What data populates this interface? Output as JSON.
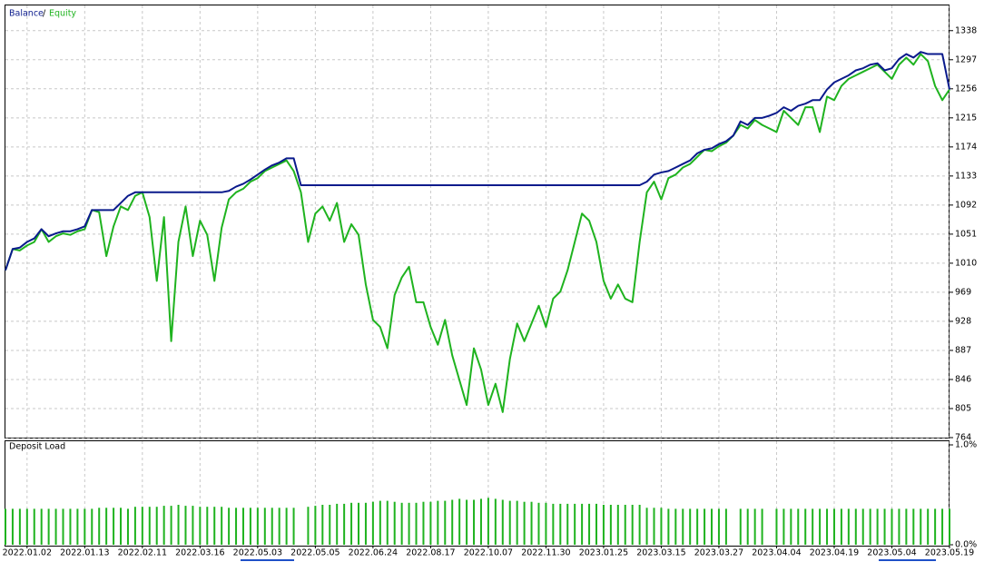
{
  "chart_data": [
    {
      "type": "line",
      "legend_separator": "/",
      "categories": [
        null,
        null,
        null,
        "2022.01.02",
        null,
        null,
        null,
        null,
        null,
        null,
        null,
        "2022.01.13",
        null,
        null,
        null,
        null,
        null,
        null,
        null,
        "2022.02.11",
        null,
        null,
        null,
        null,
        null,
        null,
        null,
        "2022.03.16",
        null,
        null,
        null,
        null,
        null,
        null,
        null,
        "2022.05.03",
        null,
        null,
        null,
        null,
        null,
        null,
        null,
        "2022.05.05",
        null,
        null,
        null,
        null,
        null,
        null,
        null,
        "2022.06.24",
        null,
        null,
        null,
        null,
        null,
        null,
        null,
        "2022.08.17",
        null,
        null,
        null,
        null,
        null,
        null,
        null,
        "2022.10.07",
        null,
        null,
        null,
        null,
        null,
        null,
        null,
        "2022.11.30",
        null,
        null,
        null,
        null,
        null,
        null,
        null,
        "2023.01.25",
        null,
        null,
        null,
        null,
        null,
        null,
        null,
        "2023.03.15",
        null,
        null,
        null,
        null,
        null,
        null,
        null,
        "2023.03.27",
        null,
        null,
        null,
        null,
        null,
        null,
        null,
        "2023.04.04",
        null,
        null,
        null,
        null,
        null,
        null,
        null,
        "2023.04.19",
        null,
        null,
        null,
        null,
        null,
        null,
        null,
        "2023.05.04",
        null,
        null,
        null,
        null,
        null,
        null,
        null,
        "2023.05.19"
      ],
      "series": [
        {
          "name": "Balance",
          "color": "#0a1a8c",
          "values": [
            1000,
            1030,
            1032,
            1040,
            1045,
            1058,
            1048,
            1052,
            1055,
            1055,
            1058,
            1062,
            1085,
            1085,
            1085,
            1085,
            1095,
            1105,
            1110,
            1110,
            1110,
            1110,
            1110,
            1110,
            1110,
            1110,
            1110,
            1110,
            1110,
            1110,
            1110,
            1112,
            1118,
            1122,
            1128,
            1135,
            1142,
            1148,
            1152,
            1158,
            1158,
            1120,
            1120,
            1120,
            1120,
            1120,
            1120,
            1120,
            1120,
            1120,
            1120,
            1120,
            1120,
            1120,
            1120,
            1120,
            1120,
            1120,
            1120,
            1120,
            1120,
            1120,
            1120,
            1120,
            1120,
            1120,
            1120,
            1120,
            1120,
            1120,
            1120,
            1120,
            1120,
            1120,
            1120,
            1120,
            1120,
            1120,
            1120,
            1120,
            1120,
            1120,
            1120,
            1120,
            1120,
            1120,
            1120,
            1120,
            1120,
            1125,
            1135,
            1138,
            1140,
            1145,
            1150,
            1155,
            1165,
            1170,
            1172,
            1178,
            1182,
            1190,
            1210,
            1205,
            1215,
            1215,
            1218,
            1222,
            1230,
            1225,
            1232,
            1235,
            1240,
            1240,
            1255,
            1265,
            1270,
            1275,
            1282,
            1285,
            1290,
            1292,
            1282,
            1285,
            1298,
            1305,
            1300,
            1308,
            1305,
            1305,
            1305,
            1255
          ]
        },
        {
          "name": "Equity",
          "color": "#1fb31f",
          "values": [
            1000,
            1030,
            1028,
            1035,
            1040,
            1058,
            1040,
            1048,
            1052,
            1050,
            1055,
            1058,
            1085,
            1082,
            1020,
            1062,
            1090,
            1085,
            1105,
            1110,
            1075,
            985,
            1075,
            900,
            1040,
            1090,
            1020,
            1070,
            1050,
            985,
            1060,
            1100,
            1110,
            1115,
            1125,
            1130,
            1140,
            1145,
            1150,
            1155,
            1140,
            1110,
            1040,
            1080,
            1090,
            1070,
            1095,
            1040,
            1065,
            1050,
            980,
            930,
            920,
            890,
            965,
            990,
            1005,
            955,
            955,
            920,
            895,
            930,
            880,
            845,
            810,
            890,
            860,
            810,
            840,
            800,
            875,
            925,
            900,
            925,
            950,
            920,
            960,
            970,
            1000,
            1040,
            1080,
            1070,
            1040,
            985,
            960,
            980,
            960,
            955,
            1040,
            1110,
            1125,
            1100,
            1130,
            1135,
            1145,
            1150,
            1160,
            1170,
            1168,
            1175,
            1180,
            1190,
            1205,
            1200,
            1212,
            1205,
            1200,
            1195,
            1225,
            1215,
            1205,
            1230,
            1230,
            1195,
            1245,
            1240,
            1260,
            1270,
            1275,
            1280,
            1285,
            1290,
            1280,
            1270,
            1290,
            1300,
            1290,
            1305,
            1295,
            1260,
            1240,
            1255
          ]
        }
      ],
      "ylim": [
        764,
        1371
      ],
      "yticks": [
        764,
        805,
        846,
        887,
        928,
        969,
        1010,
        1051,
        1092,
        1133,
        1174,
        1215,
        1256,
        1297,
        1338
      ],
      "grid": true
    },
    {
      "type": "bar",
      "title": "Deposit Load",
      "color": "#1fb31f",
      "values": [
        0.36,
        0.36,
        0.36,
        0.36,
        0.36,
        0.36,
        0.36,
        0.36,
        0.36,
        0.36,
        0.36,
        0.36,
        0.36,
        0.37,
        0.37,
        0.37,
        0.37,
        0.36,
        0.38,
        0.38,
        0.38,
        0.38,
        0.39,
        0.39,
        0.4,
        0.39,
        0.39,
        0.38,
        0.38,
        0.38,
        0.38,
        0.37,
        0.37,
        0.37,
        0.37,
        0.37,
        0.37,
        0.37,
        0.37,
        0.37,
        0.37,
        null,
        0.38,
        0.39,
        0.4,
        0.4,
        0.41,
        0.41,
        0.42,
        0.42,
        0.42,
        0.43,
        0.44,
        0.44,
        0.43,
        0.42,
        0.42,
        0.42,
        0.43,
        0.43,
        0.44,
        0.44,
        0.45,
        0.46,
        0.45,
        0.45,
        0.46,
        0.47,
        0.46,
        0.45,
        0.44,
        0.44,
        0.43,
        0.43,
        0.42,
        0.42,
        0.41,
        0.41,
        0.41,
        0.41,
        0.41,
        0.41,
        0.41,
        0.4,
        0.4,
        0.4,
        0.4,
        0.4,
        0.4,
        0.37,
        0.37,
        0.37,
        0.36,
        0.36,
        0.36,
        0.36,
        0.36,
        0.36,
        0.36,
        0.36,
        0.36,
        null,
        0.36,
        0.36,
        0.36,
        0.36,
        null,
        0.36,
        0.36,
        0.36,
        0.36,
        0.36,
        0.36,
        0.36,
        0.36,
        0.36,
        0.36,
        0.36,
        0.36,
        0.36,
        0.36,
        0.36,
        0.36,
        0.36,
        0.36,
        0.36,
        0.36,
        0.36,
        0.36,
        0.36,
        0.36,
        0.36
      ],
      "ylim": [
        0,
        1
      ],
      "yticks": [
        {
          "value": 0,
          "label": "0.0%"
        },
        {
          "value": 1,
          "label": "1.0%"
        }
      ]
    }
  ]
}
